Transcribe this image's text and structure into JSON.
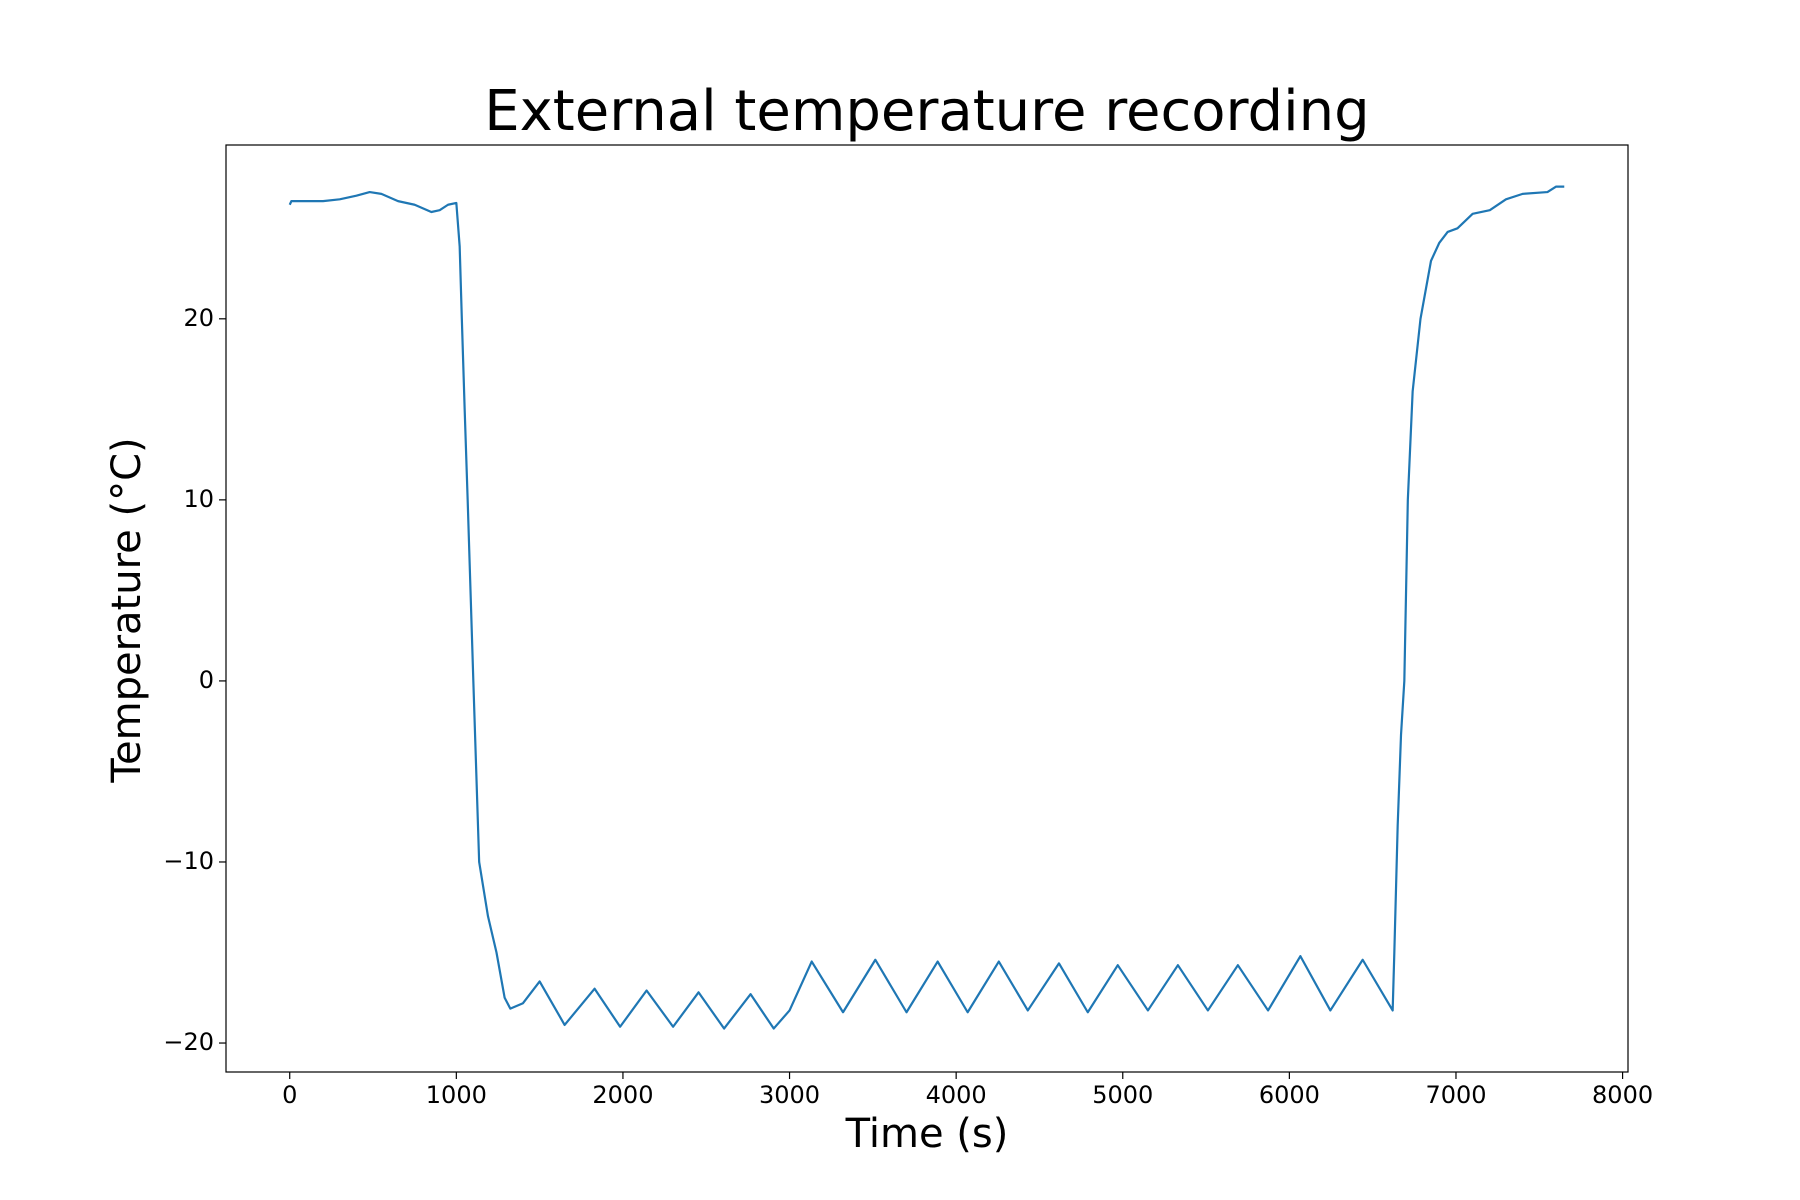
{
  "chart_data": {
    "type": "line",
    "title": "External temperature recording",
    "x_label": "Time (s)",
    "y_label": "Temperature (°C)",
    "xlim": [
      -382.5,
      8032.5
    ],
    "ylim": [
      -21.6,
      29.6
    ],
    "xticks": [
      0,
      1000,
      2000,
      3000,
      4000,
      5000,
      6000,
      7000,
      8000
    ],
    "yticks": [
      {
        "value": -20,
        "label": "−20"
      },
      {
        "value": -10,
        "label": "−10"
      },
      0,
      10,
      20
    ],
    "x": [
      0,
      10,
      100,
      200,
      300,
      400,
      480,
      550,
      650,
      750,
      850,
      900,
      950,
      1000,
      1020,
      1033,
      1050,
      1068,
      1085,
      1102,
      1137,
      1190,
      1241,
      1290,
      1324,
      1400,
      1500,
      1650,
      1830,
      1983,
      2142,
      2301,
      2454,
      2607,
      2766,
      2905,
      3000,
      3133,
      3321,
      3515,
      3702,
      3889,
      4069,
      4256,
      4430,
      4617,
      4790,
      4970,
      5151,
      5331,
      5511,
      5691,
      5872,
      6066,
      6246,
      6440,
      6620,
      6630,
      6650,
      6670,
      6690,
      6711,
      6740,
      6787,
      6850,
      6900,
      6950,
      7009,
      7100,
      7203,
      7300,
      7400,
      7549,
      7600,
      7650
    ],
    "series": [
      {
        "name": "External temperature",
        "color": "#1f77b4",
        "values": [
          26.3,
          26.5,
          26.5,
          26.5,
          26.6,
          26.8,
          27.0,
          26.9,
          26.5,
          26.3,
          25.9,
          26.0,
          26.3,
          26.4,
          24,
          20,
          15,
          10,
          5,
          0,
          -10,
          -13,
          -15,
          -17.5,
          -18.1,
          -17.8,
          -16.6,
          -19.0,
          -17.0,
          -19.1,
          -17.1,
          -19.1,
          -17.2,
          -19.2,
          -17.3,
          -19.2,
          -18.2,
          -15.5,
          -18.3,
          -15.4,
          -18.3,
          -15.5,
          -18.3,
          -15.5,
          -18.2,
          -15.6,
          -18.3,
          -15.7,
          -18.2,
          -15.7,
          -18.2,
          -15.7,
          -18.2,
          -15.2,
          -18.2,
          -15.4,
          -18.2,
          -15,
          -8,
          -3,
          0,
          10,
          16,
          20,
          23.2,
          24.2,
          24.8,
          25,
          25.8,
          26,
          26.6,
          26.9,
          27,
          27.3,
          27.3
        ]
      }
    ]
  }
}
